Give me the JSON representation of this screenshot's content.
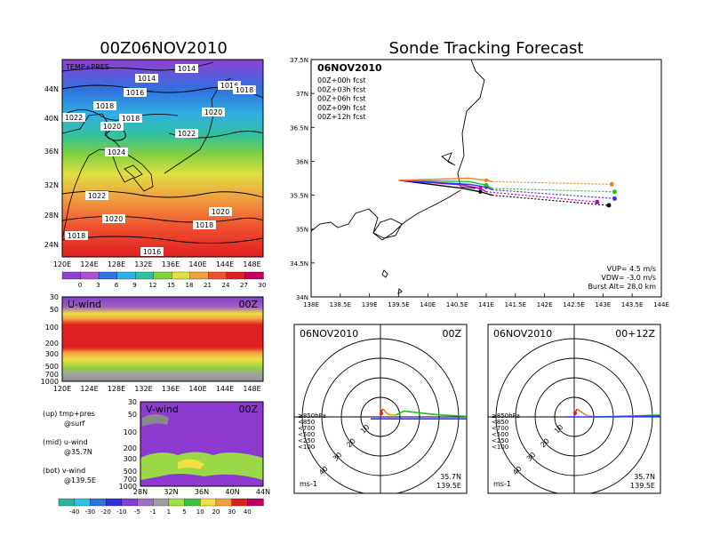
{
  "colors": {
    "purple": "#9b30d9",
    "violet": "#c040e0",
    "blue": "#3030e0",
    "cyan": "#30c0e0",
    "teal": "#30d0b0",
    "green": "#40c040",
    "lightgreen": "#a0e040",
    "yellow": "#f0e040",
    "orange": "#f08040",
    "red": "#e02020",
    "darkred": "#c00060",
    "gray": "#a0a0a0"
  },
  "temp_panel": {
    "title": "00Z06NOV2010",
    "label": "TEMP+PRES",
    "lat_ticks": [
      "44N",
      "40N",
      "36N",
      "32N",
      "28N",
      "24N"
    ],
    "lon_ticks": [
      "120E",
      "124E",
      "128E",
      "132E",
      "136E",
      "140E",
      "144E",
      "148E"
    ],
    "colorbar_ticks": [
      "0",
      "3",
      "6",
      "9",
      "12",
      "15",
      "18",
      "21",
      "24",
      "27",
      "30"
    ],
    "isobar_labels": [
      "1014",
      "1014",
      "1016",
      "1016",
      "1018",
      "1018",
      "1022",
      "1018",
      "1020",
      "1020",
      "1022",
      "1024",
      "1022",
      "1020",
      "1020",
      "1018",
      "1018",
      "1016"
    ]
  },
  "u_panel": {
    "label": "U-wind",
    "time": "00Z",
    "p_ticks": [
      "30",
      "50",
      "100",
      "200",
      "300",
      "500",
      "700",
      "1000"
    ],
    "lon_ticks": [
      "120E",
      "124E",
      "128E",
      "132E",
      "136E",
      "140E",
      "144E",
      "148E"
    ]
  },
  "v_panel": {
    "label": "V-wind",
    "time": "00Z",
    "p_ticks": [
      "30",
      "50",
      "100",
      "200",
      "300",
      "500",
      "700",
      "1000"
    ],
    "lat_ticks": [
      "28N",
      "32N",
      "36N",
      "40N",
      "44N"
    ],
    "colorbar_ticks": [
      "-40",
      "-30",
      "-20",
      "-10",
      "-5",
      "-1",
      "1",
      "5",
      "10",
      "20",
      "30",
      "40"
    ]
  },
  "legend_notes": [
    {
      "line1": "(up) tmp+pres",
      "line2": "@surf"
    },
    {
      "line1": "(mid) u-wind",
      "line2": "@35.7N"
    },
    {
      "line1": "(bot) v-wind",
      "line2": "@139.5E"
    }
  ],
  "track_panel": {
    "title": "Sonde Tracking Forecast",
    "date": "06NOV2010",
    "forecasts": [
      {
        "label": "00Z+00h fcst",
        "color": "#000000"
      },
      {
        "label": "00Z+03h fcst",
        "color": "#c000c0"
      },
      {
        "label": "00Z+06h fcst",
        "color": "#3030ff"
      },
      {
        "label": "00Z+09h fcst",
        "color": "#20c020"
      },
      {
        "label": "00Z+12h fcst",
        "color": "#f08020"
      }
    ],
    "lat_ticks": [
      "37.5N",
      "37N",
      "36.5N",
      "36N",
      "35.5N",
      "35N",
      "34.5N",
      "34N"
    ],
    "lon_ticks": [
      "138E",
      "138.5E",
      "139E",
      "139.5E",
      "140E",
      "140.5E",
      "141E",
      "141.5E",
      "142E",
      "142.5E",
      "143E",
      "143.5E",
      "144E"
    ],
    "vup": "VUP= 4.5 m/s",
    "vdw": "VDW= -3.0 m/s",
    "burst": "Burst Alt= 28.0 km"
  },
  "hodo_left": {
    "date": "06NOV2010",
    "time": "00Z",
    "ring_labels": [
      "10",
      "20",
      "30",
      "40"
    ],
    "pressure_legend": [
      {
        "label": "≥850hPa",
        "color": "#e02020"
      },
      {
        "label": "<850",
        "color": "#f08020"
      },
      {
        "label": "<700",
        "color": "#e0c000"
      },
      {
        "label": "<500",
        "color": "#20c020"
      },
      {
        "label": "<250",
        "color": "#20a0e0"
      },
      {
        "label": "<100",
        "color": "#3030ff"
      }
    ],
    "units": "ms-1",
    "lat": "35.7N",
    "lon": "139.5E"
  },
  "hodo_right": {
    "date": "06NOV2010",
    "time": "00+12Z",
    "ring_labels": [
      "10",
      "20",
      "30",
      "40"
    ],
    "pressure_legend": [
      {
        "label": "≥850hPa",
        "color": "#e02020"
      },
      {
        "label": "<850",
        "color": "#f08020"
      },
      {
        "label": "<700",
        "color": "#e0c000"
      },
      {
        "label": "<500",
        "color": "#20c020"
      },
      {
        "label": "<250",
        "color": "#20a0e0"
      },
      {
        "label": "<100",
        "color": "#3030ff"
      }
    ],
    "units": "ms-1",
    "lat": "35.7N",
    "lon": "139.5E"
  },
  "chart_data": [
    {
      "type": "line",
      "title": "Sonde Tracking Forecast",
      "subtitle": "06NOV2010",
      "xlim": [
        138,
        144
      ],
      "ylim": [
        34,
        37.5
      ],
      "series": [
        {
          "name": "00Z+00h fcst",
          "x": [
            139.5,
            140.6,
            140.9,
            141.1,
            143.1
          ],
          "y": [
            35.72,
            35.6,
            35.55,
            35.5,
            35.35
          ]
        },
        {
          "name": "00Z+03h fcst",
          "x": [
            139.5,
            140.6,
            140.9,
            141.0,
            142.9
          ],
          "y": [
            35.72,
            35.65,
            35.6,
            35.55,
            35.4
          ]
        },
        {
          "name": "00Z+06h fcst",
          "x": [
            139.5,
            140.7,
            141.0,
            141.1,
            143.2
          ],
          "y": [
            35.72,
            35.66,
            35.62,
            35.58,
            35.45
          ]
        },
        {
          "name": "00Z+09h fcst",
          "x": [
            139.5,
            140.7,
            141.0,
            141.1,
            143.2
          ],
          "y": [
            35.72,
            35.7,
            35.65,
            35.6,
            35.55
          ]
        },
        {
          "name": "00Z+12h fcst",
          "x": [
            139.5,
            140.7,
            141.0,
            141.1,
            143.15
          ],
          "y": [
            35.72,
            35.75,
            35.72,
            35.7,
            35.66
          ]
        }
      ]
    },
    {
      "type": "line",
      "title": "06NOV2010 00Z",
      "ring_labels": [
        "10",
        "20",
        "30",
        "40"
      ],
      "series": [
        {
          "name": "≥850hPa",
          "u": [
            0,
            0.2,
            0.5,
            1.5
          ],
          "v": [
            0,
            1,
            3,
            4
          ]
        },
        {
          "name": "<850",
          "u": [
            1.5,
            3,
            5
          ],
          "v": [
            4,
            2,
            1
          ]
        },
        {
          "name": "<700",
          "u": [
            5,
            8
          ],
          "v": [
            1,
            1
          ]
        },
        {
          "name": "<500",
          "u": [
            8,
            12,
            30,
            50
          ],
          "v": [
            1,
            3,
            1,
            0
          ]
        },
        {
          "name": "<250",
          "u": [
            50,
            50
          ],
          "v": [
            0,
            -1
          ]
        },
        {
          "name": "<100",
          "u": [
            50,
            20,
            -5
          ],
          "v": [
            -1,
            -1,
            -1
          ]
        }
      ]
    },
    {
      "type": "line",
      "title": "06NOV2010 00+12Z",
      "ring_labels": [
        "10",
        "20",
        "30",
        "40"
      ],
      "series": [
        {
          "name": "≥850hPa",
          "u": [
            0,
            0.3,
            1.5
          ],
          "v": [
            0,
            2,
            4
          ]
        },
        {
          "name": "<850",
          "u": [
            1.5,
            3,
            6
          ],
          "v": [
            4,
            3,
            1
          ]
        },
        {
          "name": "<700",
          "u": [
            6,
            10
          ],
          "v": [
            1,
            0
          ]
        },
        {
          "name": "<500",
          "u": [
            10,
            30,
            45
          ],
          "v": [
            0,
            0.5,
            1
          ]
        },
        {
          "name": "<250",
          "u": [
            45,
            48
          ],
          "v": [
            1,
            0.5
          ]
        },
        {
          "name": "<100",
          "u": [
            48,
            20,
            -4
          ],
          "v": [
            0.5,
            0,
            0
          ]
        }
      ]
    }
  ]
}
